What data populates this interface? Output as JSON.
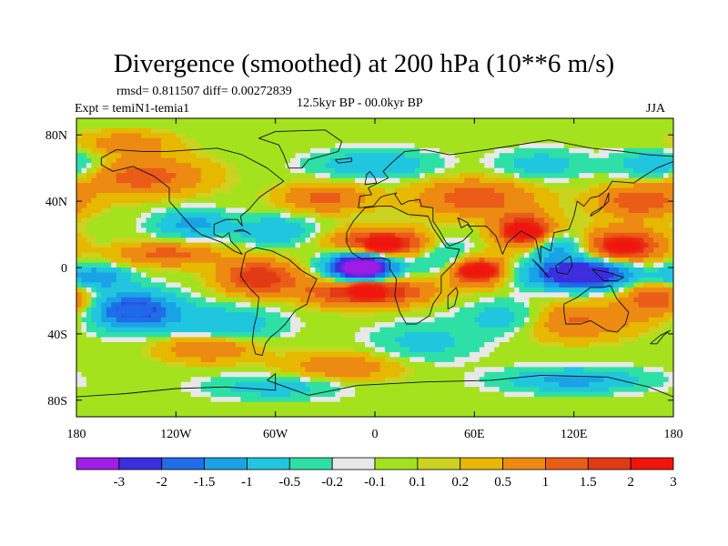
{
  "header": {
    "title": "Divergence (smoothed) at 200 hPa (10**6 m/s)",
    "stats": "rmsd= 0.811507 diff= 0.00272839",
    "experiment": "Expt = temiN1-temia1",
    "period": "12.5kyr BP - 00.0kyr BP",
    "season": "JJA"
  },
  "chart_data": {
    "type": "heatmap",
    "title": "Divergence (smoothed) at 200 hPa (10**6 m/s)",
    "variable": "Divergence (smoothed) at 200 hPa",
    "units": "10**6 m/s",
    "xlabel": "",
    "ylabel": "",
    "xlim": [
      -180,
      180
    ],
    "ylim": [
      -90,
      90
    ],
    "x_ticks": [
      {
        "value": -180,
        "label": "180"
      },
      {
        "value": -120,
        "label": "120W"
      },
      {
        "value": -60,
        "label": "60W"
      },
      {
        "value": 0,
        "label": "0"
      },
      {
        "value": 60,
        "label": "60E"
      },
      {
        "value": 120,
        "label": "120E"
      },
      {
        "value": 180,
        "label": "180"
      }
    ],
    "y_ticks": [
      {
        "value": 80,
        "label": "80N"
      },
      {
        "value": 40,
        "label": "40N"
      },
      {
        "value": 0,
        "label": "0"
      },
      {
        "value": -40,
        "label": "40S"
      },
      {
        "value": -80,
        "label": "80S"
      }
    ],
    "colorbar": {
      "levels": [
        -3,
        -2,
        -1.5,
        -1,
        -0.5,
        -0.2,
        -0.1,
        0.1,
        0.2,
        0.5,
        1,
        1.5,
        2,
        3
      ],
      "labels": [
        "-3",
        "-2",
        "-1.5",
        "-1",
        "-0.5",
        "-0.2",
        "-0.1",
        "0.1",
        "0.2",
        "0.5",
        "1",
        "1.5",
        "2",
        "3"
      ],
      "colors": [
        "#9f1fe6",
        "#3a2ee0",
        "#1f6ee8",
        "#1aa2e6",
        "#20c6dd",
        "#2ee0a6",
        "#e8e8e8",
        "#a4e21e",
        "#cbd31e",
        "#e6b800",
        "#ec8a12",
        "#ea5c18",
        "#e23a14",
        "#f0140c"
      ]
    },
    "features": [
      {
        "name": "tropical Atlantic / Gulf of Guinea minimum",
        "lon": -8,
        "lat": 0,
        "value": -3.2
      },
      {
        "name": "Maritime Continent / west Pacific minimum",
        "lon": 125,
        "lat": -4,
        "value": -2.5
      },
      {
        "name": "South Pacific minimum",
        "lon": -145,
        "lat": -26,
        "value": -1.8
      },
      {
        "name": "north Africa maximum",
        "lon": 5,
        "lat": 14,
        "value": 2.2
      },
      {
        "name": "south Atlantic maximum",
        "lon": -5,
        "lat": -14,
        "value": 2.2
      },
      {
        "name": "Indian Ocean maximum",
        "lon": 62,
        "lat": -2,
        "value": 2.0
      },
      {
        "name": "Bay of Bengal maximum",
        "lon": 90,
        "lat": 22,
        "value": 2.2
      },
      {
        "name": "western Pacific maximum",
        "lon": 150,
        "lat": 13,
        "value": 2.0
      },
      {
        "name": "tropical east Pacific maximum",
        "lon": -70,
        "lat": -6,
        "value": 1.6
      }
    ]
  }
}
